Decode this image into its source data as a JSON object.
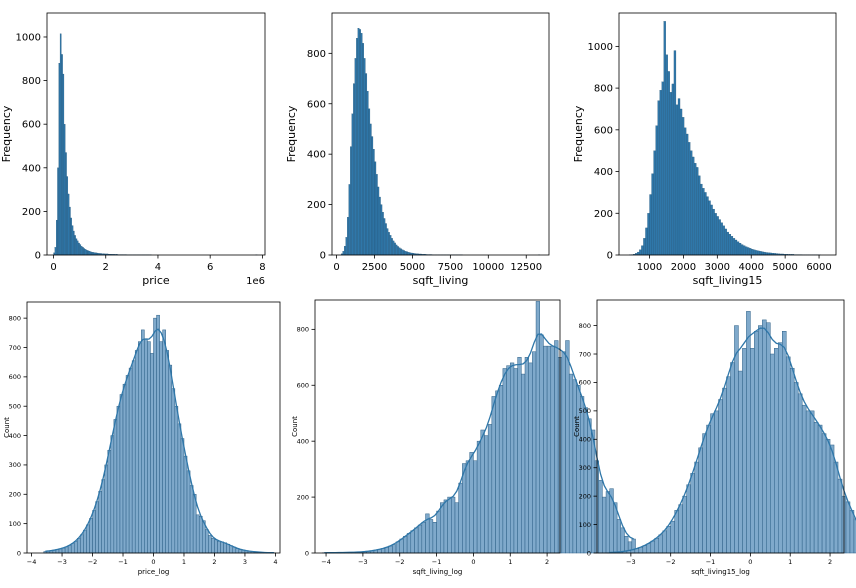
{
  "chart_data": [
    {
      "type": "histogram",
      "xlabel": "price",
      "ylabel": "Frequency",
      "offset_text": "1e6",
      "xlim": [
        -0.25,
        8.1
      ],
      "ylim": [
        0,
        1110
      ],
      "xticks": [
        0,
        2,
        4,
        6,
        8
      ],
      "xticklabels": [
        "0",
        "2",
        "4",
        "6",
        "8"
      ],
      "yticks": [
        0,
        200,
        400,
        600,
        800,
        1000
      ],
      "yticklabels": [
        "0",
        "200",
        "400",
        "600",
        "800",
        "1000"
      ],
      "kde": false,
      "color": "#2f77a9",
      "bins": {
        "start": 0.0,
        "width": 0.05,
        "counts": [
          10,
          35,
          160,
          400,
          880,
          1015,
          920,
          830,
          600,
          470,
          360,
          280,
          220,
          170,
          135,
          110,
          90,
          75,
          65,
          55,
          48,
          40,
          35,
          30,
          26,
          22,
          20,
          18,
          15,
          13,
          12,
          11,
          10,
          9,
          8,
          7,
          7,
          6,
          6,
          5,
          5,
          5,
          4,
          4,
          4,
          3,
          3,
          3,
          3,
          2,
          2,
          2,
          2,
          2,
          2,
          2,
          1,
          1,
          1,
          1,
          1,
          1,
          1,
          1,
          1,
          1,
          1,
          1,
          1,
          1,
          1,
          1,
          1,
          1,
          1,
          0,
          0,
          0,
          0,
          0,
          0,
          0,
          0,
          0,
          0,
          0,
          0,
          0,
          0,
          0,
          0,
          0,
          0,
          0,
          0,
          0,
          0,
          0,
          0,
          0,
          0,
          0,
          0,
          0,
          0,
          0,
          0,
          0,
          0,
          0,
          0,
          0,
          0,
          0,
          0,
          0,
          0,
          0,
          0,
          0,
          0,
          0,
          0,
          0,
          0,
          0,
          0,
          0,
          0,
          0,
          0,
          0,
          0,
          0,
          0,
          0,
          0,
          0,
          0,
          0,
          0,
          0,
          0,
          0,
          0,
          0,
          0,
          0,
          0,
          0,
          0,
          0,
          0,
          0,
          0,
          1
        ]
      }
    },
    {
      "type": "histogram",
      "xlabel": "sqft_living",
      "ylabel": "Frequency",
      "offset_text": "",
      "xlim": [
        -300,
        14000
      ],
      "ylim": [
        0,
        960
      ],
      "xticks": [
        0,
        2500,
        5000,
        7500,
        10000,
        12500
      ],
      "xticklabels": [
        "0",
        "2500",
        "5000",
        "7500",
        "10000",
        "12500"
      ],
      "yticks": [
        0,
        200,
        400,
        600,
        800
      ],
      "yticklabels": [
        "0",
        "200",
        "400",
        "600",
        "800"
      ],
      "kde": false,
      "color": "#2f77a9",
      "bins": {
        "start": 300,
        "width": 100,
        "counts": [
          5,
          15,
          35,
          70,
          150,
          280,
          430,
          560,
          680,
          780,
          860,
          900,
          895,
          880,
          840,
          780,
          720,
          650,
          580,
          520,
          470,
          420,
          370,
          320,
          270,
          230,
          200,
          170,
          145,
          125,
          105,
          90,
          78,
          66,
          56,
          48,
          40,
          34,
          29,
          25,
          21,
          18,
          15,
          13,
          11,
          9,
          8,
          7,
          6,
          5,
          5,
          4,
          4,
          3,
          3,
          3,
          2,
          2,
          2,
          2,
          1,
          1,
          1,
          1,
          1,
          1,
          1,
          1,
          1,
          1,
          1,
          1,
          1,
          1,
          1,
          1,
          1,
          1,
          1,
          1,
          0,
          0,
          0,
          0,
          0,
          0,
          0,
          0,
          0,
          0,
          0,
          0,
          0,
          0,
          0,
          0,
          0,
          0,
          0,
          0,
          0,
          0,
          0,
          0,
          0,
          0,
          0,
          0,
          0,
          0,
          0,
          0,
          0,
          0,
          0,
          0,
          0,
          0,
          0,
          0,
          0,
          0,
          0,
          0,
          0,
          0,
          0,
          0,
          0,
          0,
          1
        ]
      }
    },
    {
      "type": "histogram",
      "xlabel": "sqft_living15",
      "ylabel": "Frequency",
      "offset_text": "",
      "xlim": [
        100,
        6500
      ],
      "ylim": [
        0,
        1160
      ],
      "xticks": [
        1000,
        2000,
        3000,
        4000,
        5000,
        6000
      ],
      "xticklabels": [
        "1000",
        "2000",
        "3000",
        "4000",
        "5000",
        "6000"
      ],
      "yticks": [
        0,
        200,
        400,
        600,
        800,
        1000
      ],
      "yticklabels": [
        "0",
        "200",
        "400",
        "600",
        "800",
        "1000"
      ],
      "kde": false,
      "color": "#2f77a9",
      "bins": {
        "start": 400,
        "width": 60,
        "counts": [
          1,
          2,
          4,
          8,
          14,
          25,
          45,
          80,
          130,
          200,
          290,
          390,
          500,
          620,
          740,
          790,
          830,
          1120,
          960,
          880,
          780,
          820,
          980,
          720,
          750,
          700,
          660,
          610,
          580,
          540,
          500,
          470,
          440,
          420,
          380,
          340,
          320,
          300,
          280,
          260,
          240,
          220,
          200,
          185,
          170,
          155,
          140,
          125,
          110,
          100,
          90,
          80,
          72,
          64,
          57,
          50,
          45,
          40,
          36,
          32,
          28,
          25,
          22,
          20,
          18,
          16,
          14,
          12,
          11,
          10,
          9,
          8,
          7,
          6,
          5,
          5,
          4,
          4,
          3,
          3,
          3,
          2,
          2,
          2,
          2,
          1,
          1,
          1,
          1,
          1,
          1,
          1,
          1,
          1
        ]
      }
    },
    {
      "type": "histogram",
      "xlabel": "price_log",
      "ylabel": "Count",
      "offset_text": "",
      "xlim": [
        -4.15,
        4.15
      ],
      "ylim": [
        0,
        855
      ],
      "xticks": [
        -4,
        -3,
        -2,
        -1,
        0,
        1,
        2,
        3,
        4
      ],
      "xticklabels": [
        "−4",
        "−3",
        "−2",
        "−1",
        "0",
        "1",
        "2",
        "3",
        "4"
      ],
      "yticks": [
        0,
        100,
        200,
        300,
        400,
        500,
        600,
        700,
        800
      ],
      "yticklabels": [
        "0",
        "100",
        "200",
        "300",
        "400",
        "500",
        "600",
        "700",
        "800"
      ],
      "kde": true,
      "color": "#2f77a9",
      "bins": {
        "start": -3.6,
        "width": 0.1,
        "counts": [
          5,
          6,
          8,
          10,
          12,
          14,
          17,
          21,
          26,
          32,
          40,
          50,
          62,
          78,
          96,
          118,
          145,
          175,
          210,
          250,
          300,
          350,
          400,
          455,
          500,
          540,
          575,
          605,
          630,
          655,
          690,
          720,
          760,
          730,
          720,
          680,
          800,
          810,
          720,
          760,
          690,
          640,
          560,
          500,
          440,
          390,
          330,
          280,
          230,
          200,
          130,
          125,
          110,
          80,
          60,
          50,
          45,
          40,
          38,
          35,
          30,
          25,
          20,
          15,
          12,
          10,
          8,
          6,
          5,
          4,
          3,
          2,
          2,
          1,
          1,
          1
        ]
      }
    },
    {
      "type": "histogram",
      "xlabel": "sqft_living_log",
      "ylabel": "Count",
      "offset_text": "",
      "xlim": [
        -4.3,
        2.35
      ],
      "ylim": [
        0,
        905
      ],
      "xticks": [
        -4,
        -3,
        -2,
        -1,
        0,
        1,
        2
      ],
      "xticklabels": [
        "−4",
        "−3",
        "−2",
        "−1",
        "0",
        "1",
        "2"
      ],
      "yticks": [
        0,
        200,
        400,
        600,
        800
      ],
      "yticklabels": [
        "0",
        "200",
        "400",
        "600",
        "800"
      ],
      "kde": true,
      "color": "#2f77a9",
      "bins": {
        "start": -4.1,
        "width": 0.1,
        "counts": [
          1,
          1,
          1,
          1,
          2,
          2,
          2,
          2,
          3,
          3,
          4,
          5,
          6,
          8,
          10,
          13,
          16,
          20,
          25,
          30,
          40,
          50,
          60,
          70,
          80,
          90,
          100,
          110,
          140,
          120,
          110,
          150,
          180,
          190,
          200,
          200,
          180,
          250,
          320,
          330,
          360,
          330,
          400,
          440,
          420,
          460,
          560,
          580,
          600,
          660,
          670,
          680,
          660,
          700,
          640,
          700,
          680,
          720,
          900,
          780,
          740,
          740,
          740,
          760,
          700,
          720,
          760,
          640,
          620,
          600,
          560,
          520,
          480,
          440,
          330,
          260,
          200,
          220,
          230,
          180,
          120,
          90,
          60,
          40,
          50
        ]
      }
    },
    {
      "type": "histogram",
      "xlabel": "sqft_living15_log",
      "ylabel": "Count",
      "offset_text": "",
      "xlim": [
        -3.85,
        2.35
      ],
      "ylim": [
        0,
        890
      ],
      "xticks": [
        -3,
        -2,
        -1,
        0,
        1,
        2
      ],
      "xticklabels": [
        "−3",
        "−2",
        "−1",
        "0",
        "1",
        "2"
      ],
      "yticks": [
        0,
        100,
        200,
        300,
        400,
        500,
        600,
        700,
        800
      ],
      "yticklabels": [
        "0",
        "100",
        "200",
        "300",
        "400",
        "500",
        "600",
        "700",
        "800"
      ],
      "kde": true,
      "color": "#2f77a9",
      "bins": {
        "start": -3.6,
        "width": 0.1,
        "counts": [
          1,
          2,
          3,
          4,
          6,
          8,
          11,
          15,
          20,
          26,
          33,
          42,
          52,
          64,
          78,
          94,
          112,
          150,
          170,
          200,
          240,
          280,
          320,
          370,
          420,
          450,
          490,
          500,
          540,
          580,
          620,
          670,
          800,
          640,
          720,
          850,
          720,
          780,
          800,
          820,
          810,
          700,
          720,
          740,
          780,
          690,
          650,
          600,
          560,
          520,
          500,
          500,
          460,
          450,
          420,
          400,
          380,
          320,
          260,
          200,
          180,
          150,
          120,
          80,
          60,
          40
        ]
      }
    }
  ]
}
